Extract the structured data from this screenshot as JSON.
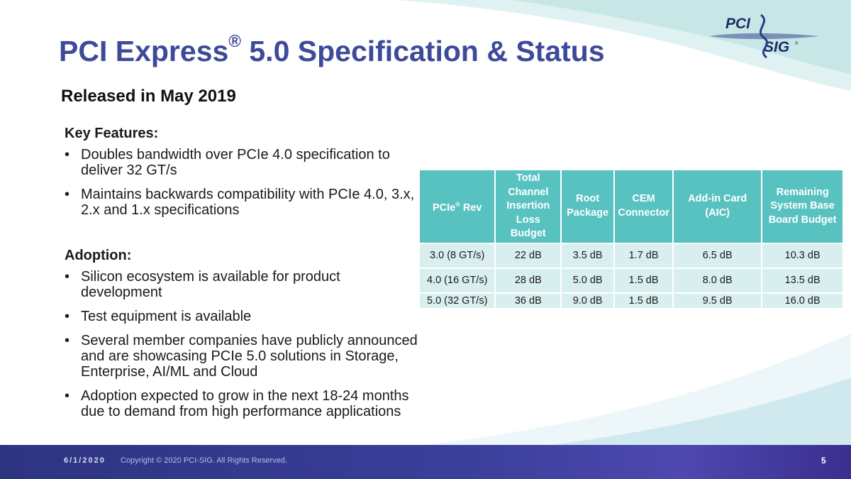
{
  "header": {
    "title": "PCI Express",
    "title_mark": "®",
    "title_rest": " 5.0 Specification & Status",
    "subtitle": "Released in May 2019"
  },
  "logo": {
    "top": "PCI",
    "bottom": "SIG",
    "mark": "®"
  },
  "features": {
    "heading": "Key Features:",
    "items": [
      "Doubles bandwidth over PCIe 4.0 specification to deliver 32 GT/s",
      "Maintains backwards compatibility with PCIe 4.0, 3.x, 2.x and 1.x specifications"
    ]
  },
  "adoption": {
    "heading": "Adoption:",
    "items": [
      "Silicon ecosystem is available for product development",
      "Test equipment is available",
      "Several member companies have publicly announced and are showcasing PCIe 5.0 solutions in Storage, Enterprise, AI/ML and Cloud",
      "Adoption expected to grow in the next 18-24 months due to demand from high performance applications"
    ]
  },
  "bullet_char": "•",
  "table": {
    "headers": {
      "rev": "PCIe",
      "rev_mark": "®",
      "rev_rest": " Rev",
      "total": "Total Channel Insertion Loss Budget",
      "root": "Root Package",
      "cem": "CEM Connector",
      "aic": "Add-in Card (AIC)",
      "remaining": "Remaining System Base Board Budget"
    },
    "rows": [
      [
        "3.0 (8 GT/s)",
        "22 dB",
        "3.5 dB",
        "1.7 dB",
        "6.5 dB",
        "10.3 dB"
      ],
      [
        "4.0 (16 GT/s)",
        "28 dB",
        "5.0 dB",
        "1.5 dB",
        "8.0 dB",
        "13.5 dB"
      ],
      [
        "5.0 (32 GT/s)",
        "36 dB",
        "9.0 dB",
        "1.5 dB",
        "9.5 dB",
        "16.0 dB"
      ]
    ]
  },
  "footer": {
    "date": "6/1/2020",
    "copyright": "Copyright © 2020 PCI-SIG. All Rights Reserved.",
    "page": "5"
  },
  "colors": {
    "title": "#3d4a9a",
    "table_header": "#58c2c1",
    "table_cell": "#d9eeee",
    "footer": "#2d3480"
  }
}
